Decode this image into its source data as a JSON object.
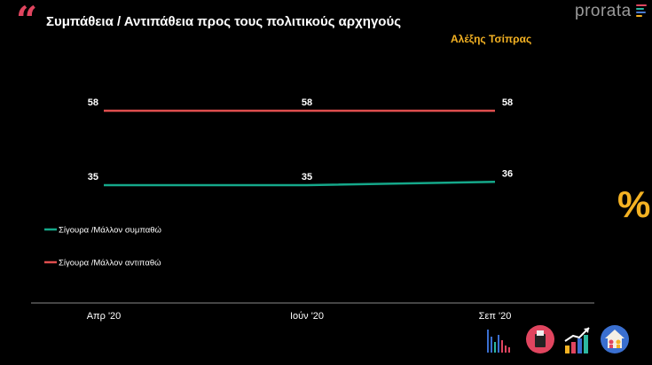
{
  "header": {
    "title": "Συμπάθεια / Αντιπάθεια προς τους πολιτικούς αρχηγούς",
    "subtitle": "Αλέξης Τσίπρας",
    "quote_glyph": "“",
    "brand": "prorata",
    "brand_bar_colors": [
      "#e0455f",
      "#2db8a0",
      "#4a7bd0",
      "#f4b223"
    ]
  },
  "side": {
    "percent_glyph": "%"
  },
  "colors": {
    "background": "#000000",
    "series_sympathy": "#15a88a",
    "series_antipathy": "#e04e4e",
    "title_accent": "#f4b223",
    "axis": "#8a8a8a"
  },
  "chart_data": {
    "type": "line",
    "categories": [
      "Απρ '20",
      "Ιούν '20",
      "Σεπ '20"
    ],
    "series": [
      {
        "name": "Σίγουρα /Μάλλον αντιπαθώ",
        "values": [
          58,
          58,
          58
        ],
        "color": "#e04e4e"
      },
      {
        "name": "Σίγουρα /Μάλλον συμπαθώ",
        "values": [
          35,
          35,
          36
        ],
        "color": "#15a88a"
      }
    ],
    "title": "Συμπάθεια / Αντιπάθεια προς τους πολιτικούς αρχηγούς",
    "subtitle": "Αλέξης Τσίπρας",
    "xlabel": "",
    "ylabel": "",
    "data_labels": true,
    "grid": false,
    "legend": "left",
    "legend_order": [
      "Σίγουρα /Μάλλον συμπαθώ",
      "Σίγουρα /Μάλλον αντιπαθώ"
    ]
  },
  "footer_icons": [
    "bar-chart-icon",
    "ballot-box-icon",
    "trend-up-icon",
    "house-people-icon"
  ]
}
